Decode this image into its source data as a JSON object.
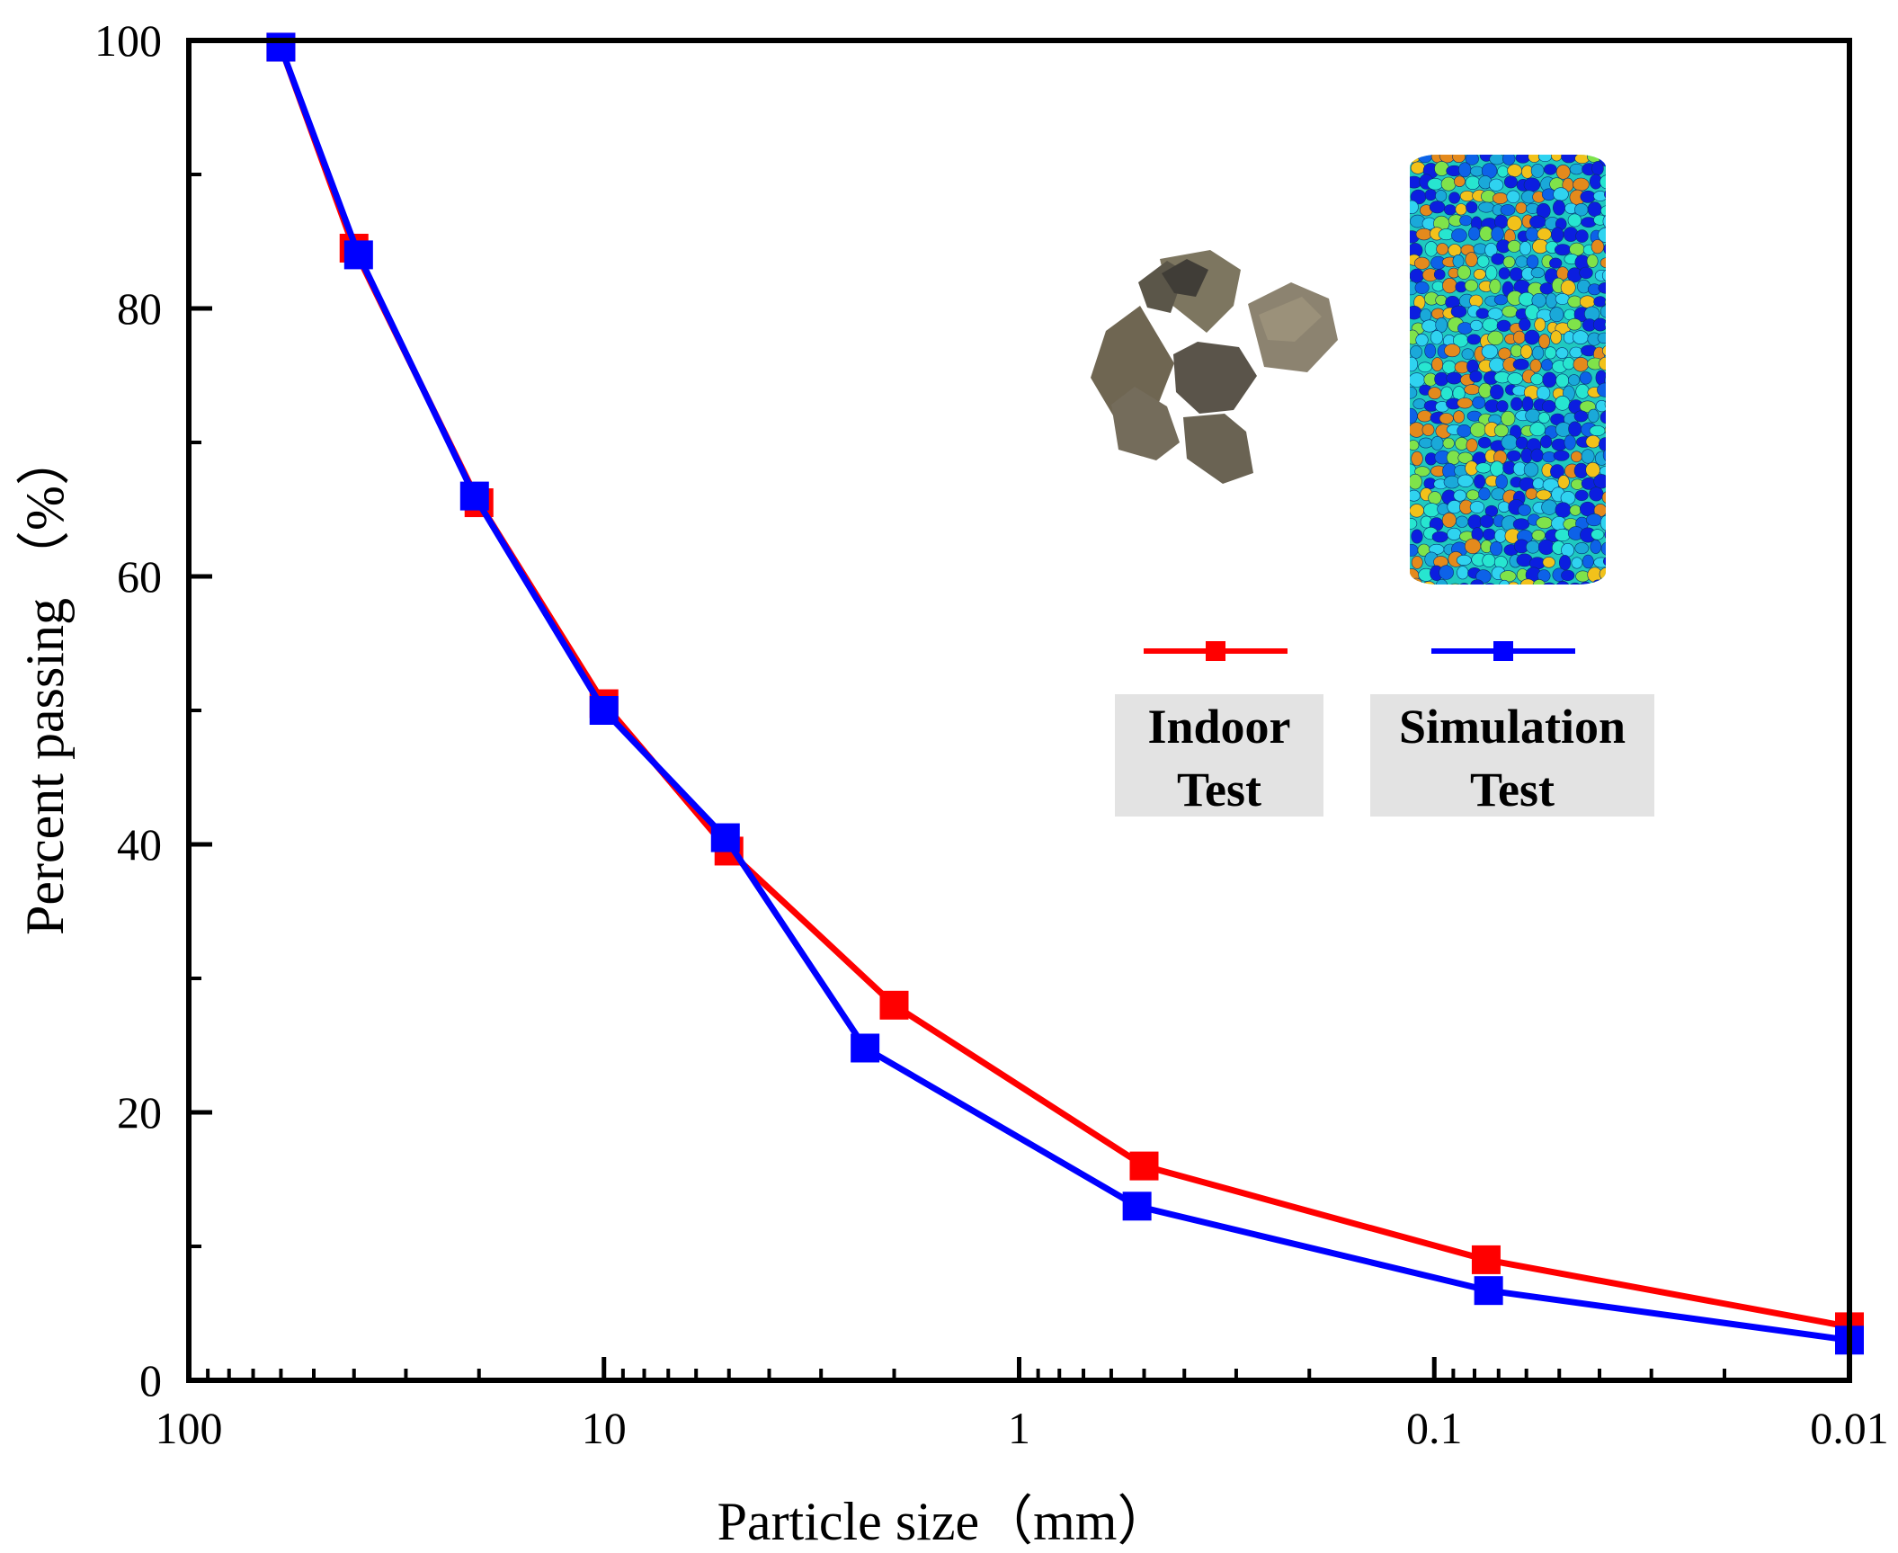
{
  "chart_data": {
    "type": "line",
    "xlabel": "Particle size（mm）",
    "ylabel": "Percent passing （%）",
    "x_scale": "log",
    "x_reversed": true,
    "xlim": [
      100,
      0.01
    ],
    "ylim": [
      0,
      100
    ],
    "x_tick_values": [
      100,
      10,
      1,
      0.1,
      0.01
    ],
    "x_tick_labels": [
      "100",
      "10",
      "1",
      "0.1",
      "0.01"
    ],
    "y_tick_values": [
      0,
      20,
      40,
      60,
      80,
      100
    ],
    "y_tick_labels": [
      "0",
      "20",
      "40",
      "60",
      "80",
      "100"
    ],
    "series": [
      {
        "name": "Indoor Test",
        "label_lines": [
          "Indoor",
          "Test"
        ],
        "color": "#ff0000",
        "marker": "square",
        "x": [
          60,
          40,
          20,
          10,
          5,
          2,
          0.5,
          0.075,
          0.01
        ],
        "y": [
          99.5,
          84.5,
          65.5,
          50.5,
          39.5,
          28,
          16,
          9,
          4
        ]
      },
      {
        "name": "Simulation Test",
        "label_lines": [
          "Simulation",
          "Test"
        ],
        "color": "#0000ff",
        "marker": "square",
        "x": [
          60,
          39,
          20.5,
          10,
          5.1,
          2.35,
          0.52,
          0.074,
          0.01
        ],
        "y": [
          99.5,
          84,
          66,
          50,
          40.5,
          24.8,
          13,
          6.7,
          3
        ]
      }
    ],
    "insets": [
      {
        "name": "rock-aggregate-photo"
      },
      {
        "name": "simulated-particle-cylinder"
      }
    ],
    "grid": false
  }
}
